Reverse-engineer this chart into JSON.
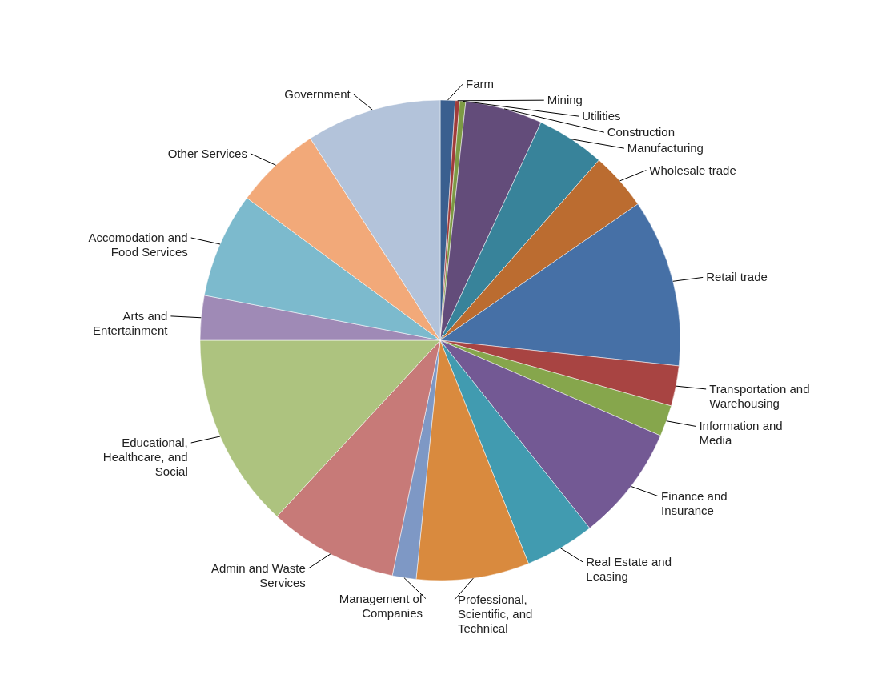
{
  "chart_data": {
    "type": "pie",
    "legend": false,
    "categories": [
      "Farm",
      "Mining",
      "Utilities",
      "Construction",
      "Manufacturing",
      "Wholesale trade",
      "Retail trade",
      "Transportation and Warehousing",
      "Information and Media",
      "Finance and Insurance",
      "Real Estate and Leasing",
      "Professional, Scientific, and Technical",
      "Management of Companies",
      "Admin and Waste Services",
      "Educational, Healthcare, and Social",
      "Arts and Entertainment",
      "Accomodation and Food Services",
      "Other Services",
      "Government"
    ],
    "values": [
      1.0,
      0.3,
      0.4,
      5.2,
      4.6,
      3.9,
      11.3,
      2.7,
      2.1,
      7.8,
      4.7,
      7.6,
      1.6,
      8.7,
      13.1,
      3.0,
      7.1,
      5.8,
      9.1
    ],
    "colors": [
      "#3a5f8f",
      "#a03c3a",
      "#7d9a44",
      "#634c7a",
      "#38839a",
      "#bb6c30",
      "#4670a6",
      "#a84442",
      "#86a64c",
      "#735994",
      "#419bb0",
      "#d98a3e",
      "#7e98c5",
      "#c77a78",
      "#adc37f",
      "#9f8ab6",
      "#7cbacd",
      "#f2a979",
      "#b3c3da"
    ]
  }
}
